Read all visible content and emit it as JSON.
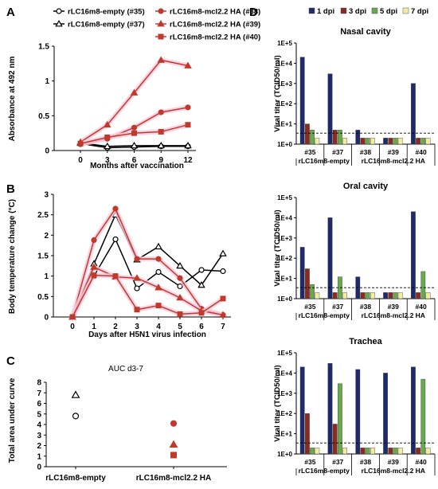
{
  "panels": {
    "A": {
      "letter": "A",
      "type": "line",
      "xlabel": "Months after vaccination",
      "ylabel": "Absorbance at 492 nm",
      "x": [
        0,
        3,
        6,
        9,
        12
      ],
      "xticks": [
        "0",
        "3",
        "6",
        "9",
        "12"
      ],
      "ylim": [
        0,
        1.5
      ],
      "yticks": [
        "0",
        "0.5",
        "1",
        "1.5"
      ],
      "series": [
        {
          "name": "rLC16m8-empty (#35)",
          "color": "#000000",
          "marker": "circle-open",
          "values": [
            0.1,
            0.04,
            0.05,
            0.06,
            0.06
          ]
        },
        {
          "name": "rLC16m8-empty (#37)",
          "color": "#000000",
          "marker": "triangle-open",
          "values": [
            0.11,
            0.06,
            0.07,
            0.07,
            0.07
          ]
        },
        {
          "name": "rLC16m8-mcl2.2 HA (#38)",
          "color": "#c0392b",
          "marker": "circle",
          "values": [
            0.09,
            0.17,
            0.33,
            0.55,
            0.62
          ]
        },
        {
          "name": "rLC16m8-mcl2.2 HA (#39)",
          "color": "#c0392b",
          "marker": "triangle",
          "values": [
            0.12,
            0.37,
            0.83,
            1.3,
            1.22
          ]
        },
        {
          "name": "rLC16m8-mcl2.2 HA (#40)",
          "color": "#c0392b",
          "marker": "square",
          "values": [
            0.1,
            0.19,
            0.25,
            0.27,
            0.37
          ]
        }
      ]
    },
    "B": {
      "letter": "B",
      "type": "line",
      "xlabel": "Days after H5N1 virus infection",
      "ylabel": "Body temperature change (°C)",
      "x": [
        0,
        1,
        2,
        3,
        4,
        5,
        6,
        7
      ],
      "xticks": [
        "0",
        "1",
        "2",
        "3",
        "4",
        "5",
        "6",
        "7"
      ],
      "ylim": [
        0,
        3
      ],
      "yticks": [
        "0",
        "0.5",
        "1",
        "1.5",
        "2",
        "2.5",
        "3"
      ],
      "series": [
        {
          "name": "#35",
          "color": "#000000",
          "marker": "circle-open",
          "values": [
            0,
            1.0,
            1.9,
            0.7,
            1.1,
            0.75,
            1.15,
            1.12
          ]
        },
        {
          "name": "#37",
          "color": "#000000",
          "marker": "triangle-open",
          "values": [
            0,
            1.3,
            2.5,
            1.4,
            1.72,
            1.25,
            0.78,
            1.55
          ]
        },
        {
          "name": "#38",
          "color": "#c0392b",
          "marker": "circle",
          "values": [
            0,
            1.88,
            2.65,
            1.42,
            1.42,
            0.95,
            0.2,
            0.05
          ]
        },
        {
          "name": "#39",
          "color": "#c0392b",
          "marker": "triangle",
          "values": [
            0,
            1.22,
            0.98,
            0.95,
            0.72,
            0.47,
            0.15,
            0.05
          ]
        },
        {
          "name": "#40",
          "color": "#c0392b",
          "marker": "square",
          "values": [
            0,
            1.02,
            1.0,
            0.18,
            0.28,
            0.07,
            0.1,
            0.45
          ]
        }
      ]
    },
    "C": {
      "letter": "C",
      "type": "scatter",
      "title": "AUC d3-7",
      "ylabel": "Total area under curve",
      "categories": [
        "rLC16m8-empty",
        "rLC16m8-mcl2.2 HA"
      ],
      "ylim": [
        0,
        8
      ],
      "yticks": [
        "0",
        "1",
        "2",
        "3",
        "4",
        "5",
        "6",
        "7",
        "8"
      ],
      "points": [
        {
          "category": 0,
          "marker": "triangle-open",
          "color": "#000000",
          "value": 6.8
        },
        {
          "category": 0,
          "marker": "circle-open",
          "color": "#000000",
          "value": 4.8
        },
        {
          "category": 1,
          "marker": "circle",
          "color": "#c0392b",
          "value": 4.1
        },
        {
          "category": 1,
          "marker": "triangle",
          "color": "#c0392b",
          "value": 2.1
        },
        {
          "category": 1,
          "marker": "square",
          "color": "#c0392b",
          "value": 1.1
        }
      ]
    },
    "D": {
      "letter": "D",
      "type": "bar",
      "ylabel": "Viral titer (TCID50/ml)",
      "ylog": [
        1,
        100000
      ],
      "yticks": [
        "1E+0",
        "1E+1",
        "1E+2",
        "1E+3",
        "1E+4",
        "1E+5"
      ],
      "detection_limit": 3.5,
      "legend": [
        {
          "label": "1 dpi",
          "color": "#1f2a6b"
        },
        {
          "label": "3 dpi",
          "color": "#8b2a1f"
        },
        {
          "label": "5 dpi",
          "color": "#6aa84f"
        },
        {
          "label": "7 dpi",
          "color": "#f3eca0"
        }
      ],
      "categories": [
        "#35",
        "#37",
        "#38",
        "#39",
        "#40"
      ],
      "groups": [
        "rLC16m8-empty",
        "rLC16m8-mcl2.2 HA"
      ],
      "subplots": [
        {
          "title": "Nasal cavity",
          "values": [
            [
              20000,
              10,
              5,
              2
            ],
            [
              3000,
              5,
              5,
              2
            ],
            [
              5,
              2,
              2,
              2
            ],
            [
              2,
              2,
              2,
              2
            ],
            [
              1000,
              2,
              2,
              2
            ]
          ]
        },
        {
          "title": "Oral cavity",
          "values": [
            [
              350,
              30,
              5,
              2
            ],
            [
              10000,
              2,
              12,
              2
            ],
            [
              12,
              2,
              2,
              2
            ],
            [
              2,
              2,
              2,
              2
            ],
            [
              20000,
              2,
              22,
              2
            ]
          ]
        },
        {
          "title": "Trachea",
          "values": [
            [
              20000,
              100,
              2,
              2
            ],
            [
              30000,
              30,
              3000,
              2
            ],
            [
              15000,
              2,
              2,
              2
            ],
            [
              10000,
              2,
              2,
              2
            ],
            [
              20000,
              2,
              5000,
              2
            ]
          ]
        }
      ]
    }
  }
}
